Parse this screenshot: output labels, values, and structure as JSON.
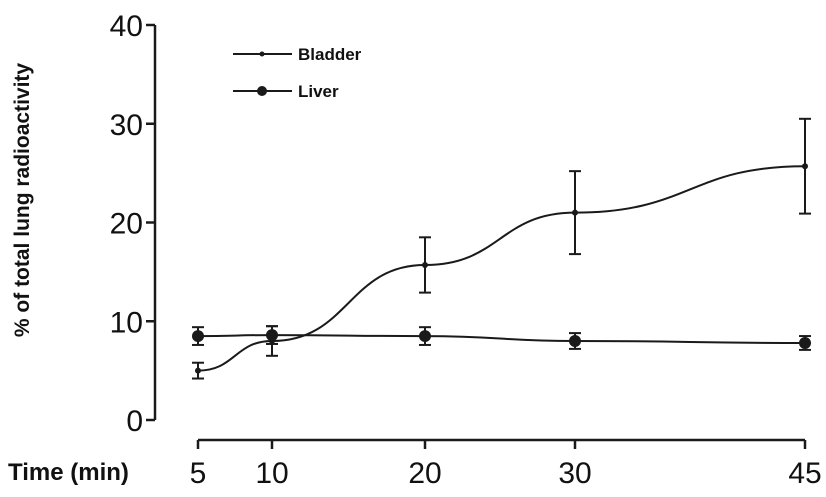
{
  "chart_data": {
    "type": "line",
    "title": "",
    "xlabel": "Time (min)",
    "ylabel": "% of total lung radioactivity",
    "x": [
      5,
      10,
      20,
      30,
      45
    ],
    "x_ticks": [
      "5",
      "10",
      "20",
      "30",
      "45"
    ],
    "y_ticks": [
      "0",
      "10",
      "20",
      "30",
      "40"
    ],
    "ylim": [
      0,
      40
    ],
    "xlim": [
      5,
      45
    ],
    "grid": false,
    "legend_position": "top-left",
    "series": [
      {
        "name": "Bladder",
        "marker": "small-dot",
        "values": [
          5.0,
          8.0,
          15.7,
          21.0,
          25.7
        ],
        "errors": [
          0.8,
          1.5,
          2.8,
          4.2,
          4.8
        ]
      },
      {
        "name": "Liver",
        "marker": "filled-circle",
        "values": [
          8.5,
          8.6,
          8.5,
          8.0,
          7.8
        ],
        "errors": [
          0.9,
          0.9,
          0.9,
          0.8,
          0.7
        ]
      }
    ],
    "colors": {
      "line": "#1a1a1a",
      "axis": "#1a1a1a"
    }
  }
}
